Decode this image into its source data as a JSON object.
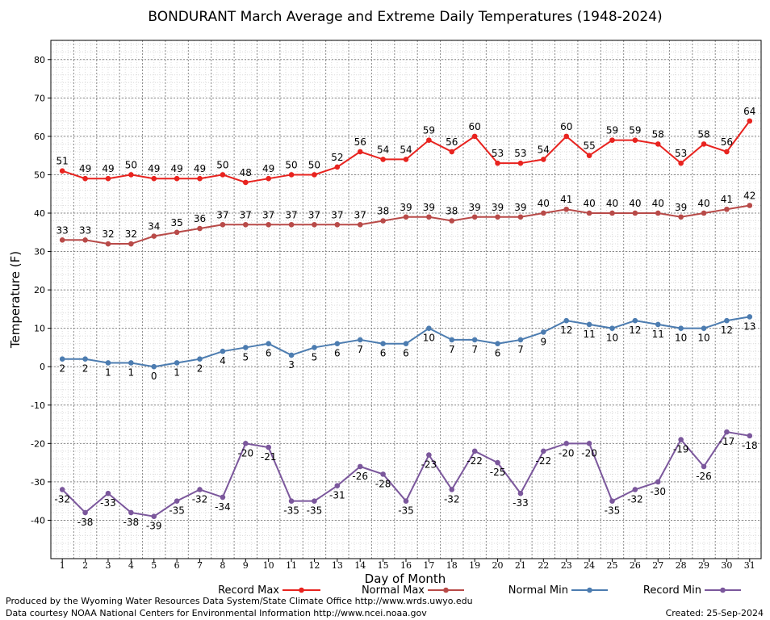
{
  "chart_data": {
    "type": "line",
    "title": "BONDURANT March Average and Extreme Daily Temperatures (1948-2024)",
    "xlabel": "Day of Month",
    "ylabel": "Temperature (F)",
    "x": [
      1,
      2,
      3,
      4,
      5,
      6,
      7,
      8,
      9,
      10,
      11,
      12,
      13,
      14,
      15,
      16,
      17,
      18,
      19,
      20,
      21,
      22,
      23,
      24,
      25,
      26,
      27,
      28,
      29,
      30,
      31
    ],
    "ylim": [
      -50,
      85
    ],
    "yticks": [
      -40,
      -30,
      -20,
      -10,
      0,
      10,
      20,
      30,
      40,
      50,
      60,
      70,
      80
    ],
    "grid": true,
    "legend": "bottom",
    "series": [
      {
        "name": "Record Max",
        "color": "#e8231f",
        "values": [
          51,
          49,
          49,
          50,
          49,
          49,
          49,
          50,
          48,
          49,
          50,
          50,
          52,
          56,
          54,
          54,
          59,
          56,
          60,
          53,
          53,
          54,
          60,
          55,
          59,
          59,
          58,
          53,
          58,
          56,
          64
        ]
      },
      {
        "name": "Normal Max",
        "color": "#b84a48",
        "values": [
          33,
          33,
          32,
          32,
          34,
          35,
          36,
          37,
          37,
          37,
          37,
          37,
          37,
          37,
          38,
          39,
          39,
          38,
          39,
          39,
          39,
          40,
          41,
          40,
          40,
          40,
          40,
          39,
          40,
          41,
          42
        ]
      },
      {
        "name": "Normal Min",
        "color": "#4c7cb0",
        "values": [
          2,
          2,
          1,
          1,
          0,
          1,
          2,
          4,
          5,
          6,
          3,
          5,
          6,
          7,
          6,
          6,
          10,
          7,
          7,
          6,
          7,
          9,
          12,
          11,
          10,
          12,
          11,
          10,
          10,
          12,
          13
        ]
      },
      {
        "name": "Record Min",
        "color": "#7b579c",
        "values": [
          -32,
          -38,
          -33,
          -38,
          -39,
          -35,
          -32,
          -34,
          -20,
          -21,
          -35,
          -35,
          -31,
          -26,
          -28,
          -35,
          -23,
          -32,
          -22,
          -25,
          -33,
          -22,
          -20,
          -20,
          -35,
          -32,
          -30,
          -19,
          -26,
          -17,
          -18
        ]
      }
    ]
  },
  "footer": {
    "produced_by": "Produced by the Wyoming Water Resources Data System/State Climate Office http://www.wrds.uwyo.edu",
    "courtesy": "Data courtesy NOAA National Centers for Environmental Information http://www.ncei.noaa.gov",
    "created": "Created: 25-Sep-2024"
  }
}
